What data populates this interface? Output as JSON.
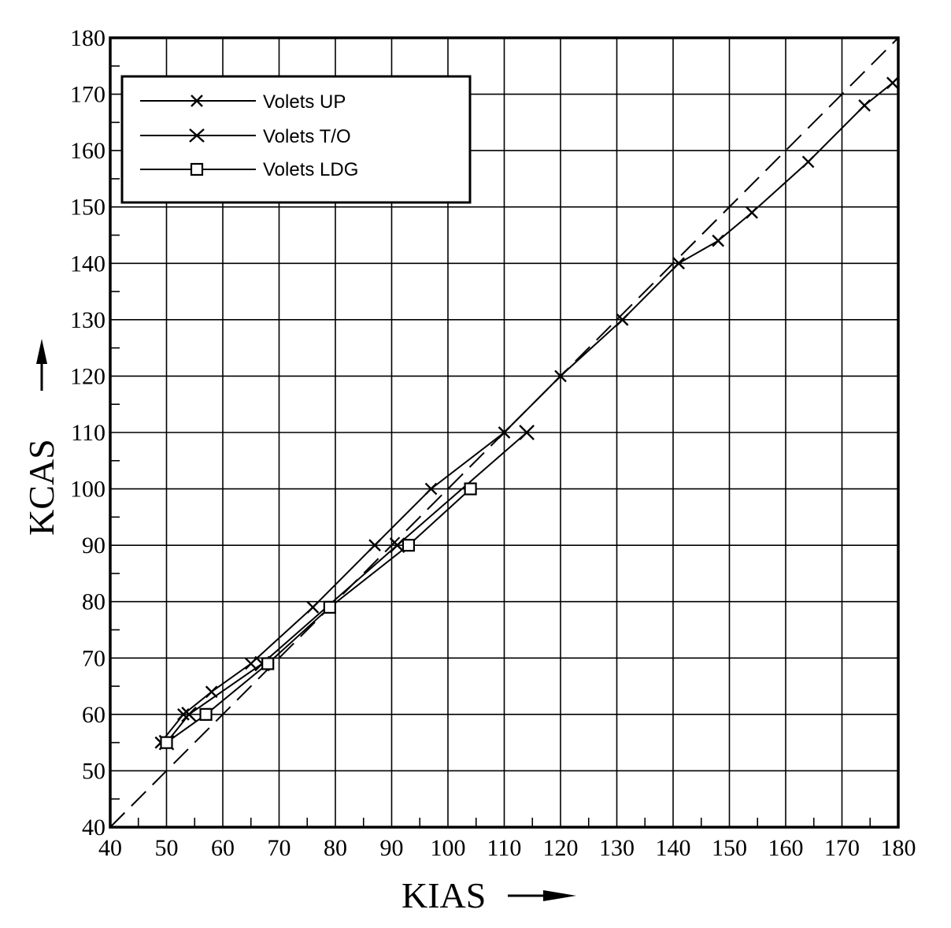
{
  "chart_data": {
    "type": "line",
    "title": "",
    "xlabel": "KIAS",
    "ylabel": "KCAS",
    "xlim": [
      40,
      180
    ],
    "ylim": [
      40,
      180
    ],
    "x_ticks": [
      "40",
      "50",
      "60",
      "70",
      "80",
      "90",
      "100",
      "110",
      "120",
      "130",
      "140",
      "150",
      "160",
      "170",
      "180"
    ],
    "y_ticks": [
      "40",
      "50",
      "60",
      "70",
      "80",
      "90",
      "100",
      "110",
      "120",
      "130",
      "140",
      "150",
      "160",
      "170",
      "180"
    ],
    "grid": true,
    "legend_position": "top-left",
    "reference_line": {
      "style": "dashed",
      "x": [
        40,
        180
      ],
      "y": [
        40,
        180
      ]
    },
    "series": [
      {
        "name": "Volets UP",
        "marker": "x",
        "x": [
          49,
          53,
          58,
          65,
          76,
          87,
          97,
          110,
          120,
          131,
          141,
          148,
          154,
          164,
          174,
          179
        ],
        "y": [
          55,
          60,
          64,
          69,
          79,
          90,
          100,
          110,
          120,
          130,
          140,
          144,
          149,
          158,
          168,
          172
        ]
      },
      {
        "name": "Volets T/O",
        "marker": "x",
        "x": [
          50,
          54,
          67,
          91,
          114
        ],
        "y": [
          55,
          60,
          69,
          90,
          110
        ]
      },
      {
        "name": "Volets LDG",
        "marker": "square",
        "x": [
          50,
          57,
          68,
          79,
          93,
          104
        ],
        "y": [
          55,
          60,
          69,
          79,
          90,
          100
        ]
      }
    ]
  }
}
